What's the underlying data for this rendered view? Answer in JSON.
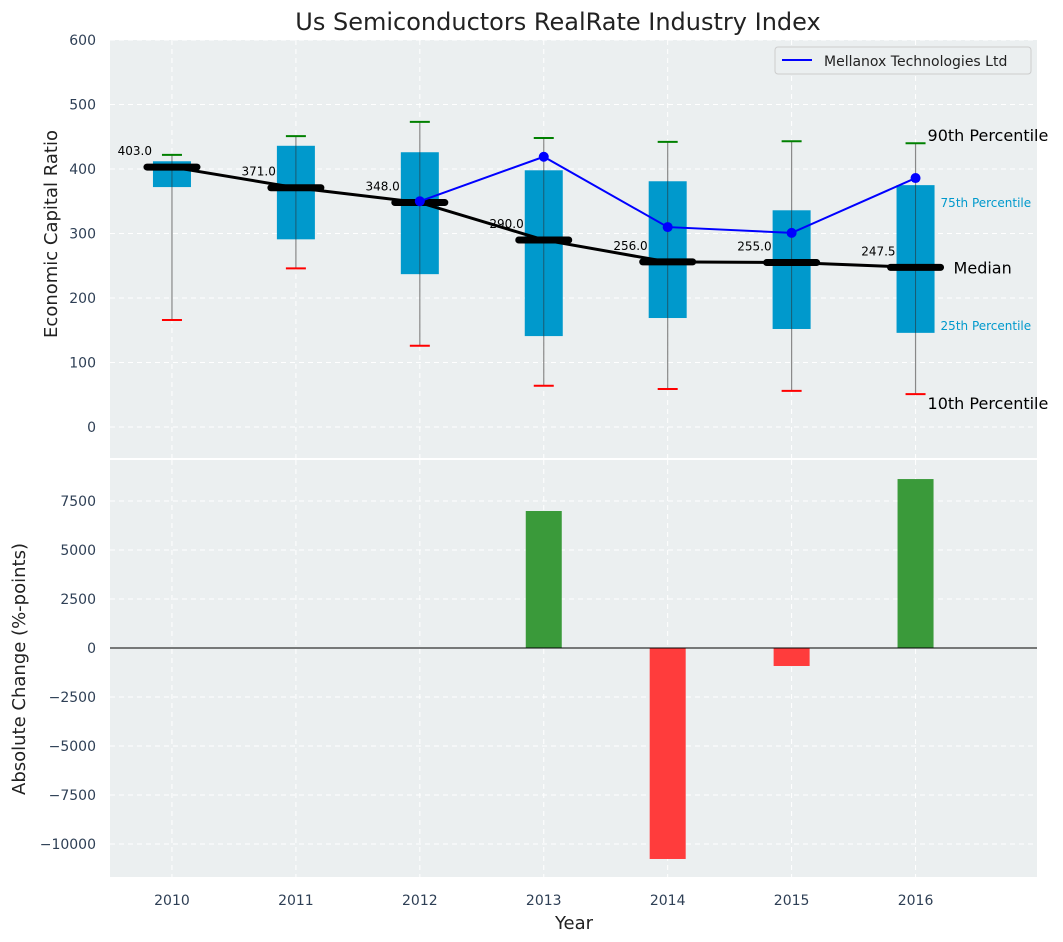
{
  "chart_data": [
    {
      "type": "box",
      "title": "Us Semiconductors RealRate Industry Index",
      "ylabel": "Economic Capital Ratio",
      "xlabel": "",
      "categories": [
        "2010",
        "2011",
        "2012",
        "2013",
        "2014",
        "2015",
        "2016"
      ],
      "x": [
        2010,
        2011,
        2012,
        2013,
        2014,
        2015,
        2016
      ],
      "p10": [
        166,
        246,
        126,
        64,
        59,
        56,
        51
      ],
      "p25": [
        372,
        291,
        237,
        141,
        169,
        152,
        146
      ],
      "median": [
        403,
        371,
        348,
        290,
        256,
        255,
        247.5
      ],
      "median_labels": [
        "403.0",
        "371.0",
        "348.0",
        "290.0",
        "256.0",
        "255.0",
        "247.5"
      ],
      "p75": [
        412,
        436,
        426,
        398,
        381,
        336,
        375
      ],
      "p90": [
        422,
        451,
        473,
        448,
        442,
        443,
        440
      ],
      "series": [
        {
          "name": "Mellanox Technologies Ltd",
          "x": [
            2012,
            2013,
            2014,
            2015,
            2016
          ],
          "values": [
            350,
            419,
            310,
            301,
            386
          ],
          "color": "#0000ff"
        }
      ],
      "ylim": [
        -48,
        600
      ],
      "xlim": [
        2009.5,
        2016.98
      ],
      "yticks": [
        0,
        100,
        200,
        300,
        400,
        500,
        600
      ],
      "annotations": {
        "p90": "90th Percentile",
        "p75": "75th Percentile",
        "median": "Median",
        "p25": "25th Percentile",
        "p10": "10th Percentile"
      },
      "legend": "top-right",
      "grid": true,
      "colors": {
        "box": "#0099cc",
        "p90": "#008000",
        "p10": "#ff0000",
        "median": "#000000",
        "bg": "#ebeff0"
      }
    },
    {
      "type": "bar",
      "ylabel": "Absolute Change (%-points)",
      "xlabel": "Year",
      "categories": [
        "2010",
        "2011",
        "2012",
        "2013",
        "2014",
        "2015",
        "2016"
      ],
      "x": [
        2013,
        2014,
        2015,
        2016
      ],
      "values": [
        6990,
        -10765,
        -918,
        8620
      ],
      "ylim": [
        -11684,
        9592
      ],
      "yticks": [
        -10000,
        -7500,
        -5000,
        -2500,
        0,
        2500,
        5000,
        7500
      ],
      "ytick_labels": [
        "−10000",
        "−7500",
        "−5000",
        "−2500",
        "0",
        "2500",
        "5000",
        "7500"
      ],
      "grid": true,
      "colors": {
        "pos": "#3a9a3a",
        "neg": "#ff3c3c"
      }
    }
  ]
}
